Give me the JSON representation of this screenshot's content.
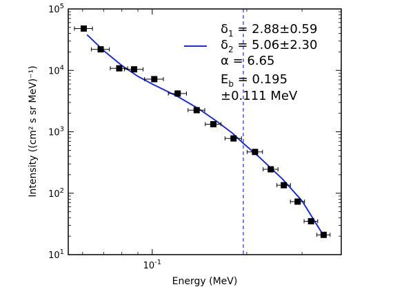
{
  "chart_data": {
    "type": "scatter",
    "title": "",
    "xlabel": "Energy (MeV)",
    "ylabel": "Intensity ((cm² s sr MeV)⁻¹)",
    "xscale": "log",
    "yscale": "log",
    "xlim": [
      0.054,
      0.4
    ],
    "ylim": [
      10,
      100000
    ],
    "x_tick_labels": [
      {
        "value": 0.1,
        "base": "10",
        "exp": "-1"
      }
    ],
    "y_tick_labels": [
      {
        "value": 10,
        "base": "10",
        "exp": "1"
      },
      {
        "value": 100,
        "base": "10",
        "exp": "2"
      },
      {
        "value": 1000,
        "base": "10",
        "exp": "3"
      },
      {
        "value": 10000,
        "base": "10",
        "exp": "4"
      },
      {
        "value": 100000,
        "base": "10",
        "exp": "5"
      }
    ],
    "grid": false,
    "legend_position": "top-right",
    "colors": {
      "data": "#000000",
      "fit": "#1f2fbf",
      "break_line": "#1f2fbf"
    },
    "series": [
      {
        "kind": "points",
        "x": [
          0.0605,
          0.0685,
          0.0785,
          0.0875,
          0.1015,
          0.1205,
          0.1385,
          0.1565,
          0.1815,
          0.2125,
          0.2385,
          0.2625,
          0.2905,
          0.3205,
          0.3515
        ],
        "y": [
          48000,
          22000,
          10800,
          10400,
          7200,
          4200,
          2250,
          1330,
          780,
          470,
          245,
          135,
          73,
          35,
          21
        ],
        "x_err": [
          0.004,
          0.0045,
          0.005,
          0.006,
          0.007,
          0.008,
          0.0085,
          0.009,
          0.011,
          0.012,
          0.013,
          0.013,
          0.015,
          0.016,
          0.017
        ]
      },
      {
        "kind": "fit",
        "x": [
          0.062,
          0.07,
          0.08,
          0.09,
          0.1,
          0.12,
          0.14,
          0.16,
          0.18,
          0.195,
          0.22,
          0.26,
          0.3,
          0.35
        ],
        "y": [
          38000,
          21000,
          12000,
          8000,
          6000,
          3800,
          2400,
          1500,
          950,
          650,
          380,
          170,
          75,
          21
        ]
      }
    ],
    "break_energy": 0.195,
    "legend": {
      "line1": {
        "symbol": "δ",
        "sub": "1",
        "text": " =  2.88±0.59"
      },
      "line2": {
        "symbol": "δ",
        "sub": "2",
        "text": " =  5.06±2.30"
      },
      "line3": "α =  6.65",
      "line4": {
        "symbol": "E",
        "sub": "b",
        "text": " =  0.195"
      },
      "line5": "±0.111 MeV"
    }
  }
}
